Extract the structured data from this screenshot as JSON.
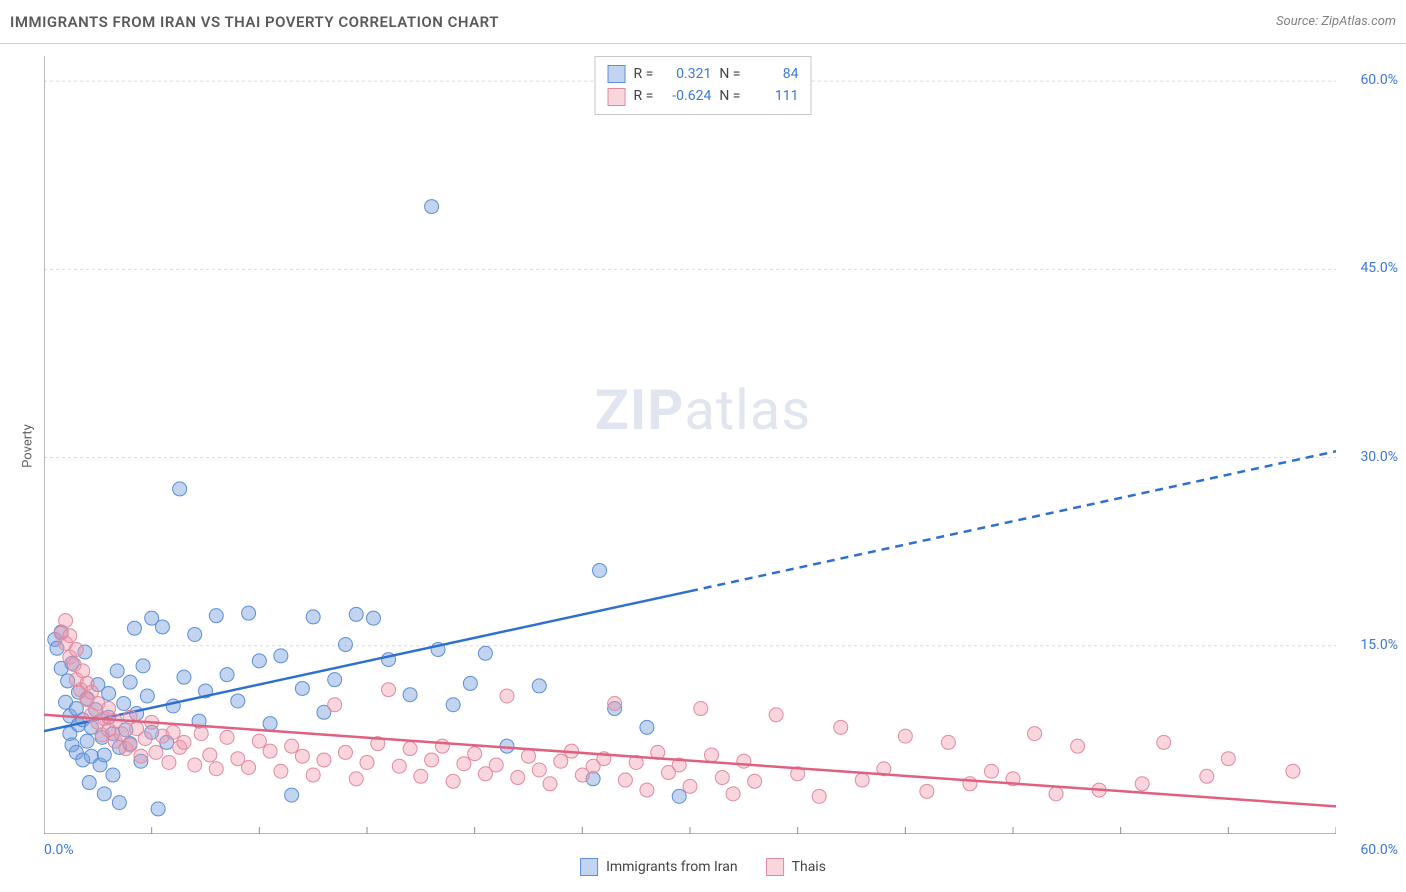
{
  "header": {
    "title": "IMMIGRANTS FROM IRAN VS THAI POVERTY CORRELATION CHART",
    "source": "Source: ZipAtlas.com"
  },
  "ylabel": "Poverty",
  "watermark": {
    "zip": "ZIP",
    "atlas": "atlas"
  },
  "chart": {
    "type": "scatter",
    "xlim": [
      0,
      60
    ],
    "ylim": [
      0,
      62
    ],
    "x_ticks": [
      0,
      5,
      10,
      15,
      20,
      25,
      30,
      35,
      40,
      45,
      50,
      55,
      60
    ],
    "y_grid": [
      15,
      30,
      45,
      60
    ],
    "y_tick_labels": [
      "15.0%",
      "30.0%",
      "45.0%",
      "60.0%"
    ],
    "x_corner_left": "0.0%",
    "x_corner_right": "60.0%",
    "background_color": "#ffffff",
    "grid_color": "#dcdcdc",
    "axis_color": "#909090",
    "tick_label_color": "#3b78d8",
    "series": [
      {
        "name": "Immigrants from Iran",
        "marker_fill": "rgba(120,160,220,0.45)",
        "marker_stroke": "#5b8fd6",
        "marker_radius": 7,
        "trend_color": "#2f6fd0",
        "trend_width": 2.5,
        "trend_solid_xmax": 30,
        "trend": {
          "x1": 0,
          "y1": 8.2,
          "x2": 60,
          "y2": 30.5
        },
        "R": "0.321",
        "N": "84",
        "points": [
          [
            0.5,
            15.5
          ],
          [
            0.6,
            14.8
          ],
          [
            0.8,
            13.2
          ],
          [
            0.8,
            16.1
          ],
          [
            1.0,
            10.5
          ],
          [
            1.1,
            12.2
          ],
          [
            1.2,
            8.0
          ],
          [
            1.2,
            9.4
          ],
          [
            1.3,
            7.1
          ],
          [
            1.3,
            13.6
          ],
          [
            1.5,
            10.0
          ],
          [
            1.5,
            6.5
          ],
          [
            1.6,
            8.7
          ],
          [
            1.6,
            11.3
          ],
          [
            1.8,
            9.1
          ],
          [
            1.8,
            5.9
          ],
          [
            1.9,
            14.5
          ],
          [
            2.0,
            7.4
          ],
          [
            2.0,
            10.8
          ],
          [
            2.1,
            4.1
          ],
          [
            2.2,
            6.2
          ],
          [
            2.2,
            8.5
          ],
          [
            2.4,
            9.9
          ],
          [
            2.5,
            11.9
          ],
          [
            2.6,
            5.5
          ],
          [
            2.7,
            7.7
          ],
          [
            2.8,
            6.3
          ],
          [
            2.8,
            3.2
          ],
          [
            3.0,
            9.3
          ],
          [
            3.0,
            11.2
          ],
          [
            3.2,
            8.0
          ],
          [
            3.2,
            4.7
          ],
          [
            3.4,
            13.0
          ],
          [
            3.5,
            6.9
          ],
          [
            3.5,
            2.5
          ],
          [
            3.7,
            10.4
          ],
          [
            3.8,
            8.3
          ],
          [
            4.0,
            12.1
          ],
          [
            4.0,
            7.2
          ],
          [
            4.2,
            16.4
          ],
          [
            4.3,
            9.6
          ],
          [
            4.5,
            5.8
          ],
          [
            4.6,
            13.4
          ],
          [
            4.8,
            11.0
          ],
          [
            5.0,
            8.1
          ],
          [
            5.0,
            17.2
          ],
          [
            5.3,
            2.0
          ],
          [
            5.5,
            16.5
          ],
          [
            5.7,
            7.3
          ],
          [
            6.0,
            10.2
          ],
          [
            6.3,
            27.5
          ],
          [
            6.5,
            12.5
          ],
          [
            7.0,
            15.9
          ],
          [
            7.2,
            9.0
          ],
          [
            7.5,
            11.4
          ],
          [
            8.0,
            17.4
          ],
          [
            8.5,
            12.7
          ],
          [
            9.0,
            10.6
          ],
          [
            9.5,
            17.6
          ],
          [
            10.0,
            13.8
          ],
          [
            10.5,
            8.8
          ],
          [
            11.0,
            14.2
          ],
          [
            11.5,
            3.1
          ],
          [
            12.0,
            11.6
          ],
          [
            12.5,
            17.3
          ],
          [
            13.0,
            9.7
          ],
          [
            13.5,
            12.3
          ],
          [
            14.0,
            15.1
          ],
          [
            14.5,
            17.5
          ],
          [
            15.3,
            17.2
          ],
          [
            16.0,
            13.9
          ],
          [
            17.0,
            11.1
          ],
          [
            18.0,
            50.0
          ],
          [
            18.3,
            14.7
          ],
          [
            19.0,
            10.3
          ],
          [
            19.8,
            12.0
          ],
          [
            20.5,
            14.4
          ],
          [
            21.5,
            7.0
          ],
          [
            23.0,
            11.8
          ],
          [
            25.5,
            4.4
          ],
          [
            25.8,
            21.0
          ],
          [
            26.5,
            10.0
          ],
          [
            28.0,
            8.5
          ],
          [
            29.5,
            3.0
          ]
        ]
      },
      {
        "name": "Thais",
        "marker_fill": "rgba(240,150,170,0.40)",
        "marker_stroke": "#e08aa0",
        "marker_radius": 7,
        "trend_color": "#e06080",
        "trend_width": 2.5,
        "trend_solid_xmax": 60,
        "trend": {
          "x1": 0,
          "y1": 9.5,
          "x2": 60,
          "y2": 2.2
        },
        "R": "-0.624",
        "N": "111",
        "points": [
          [
            0.8,
            16.0
          ],
          [
            1.0,
            15.2
          ],
          [
            1.0,
            17.0
          ],
          [
            1.2,
            14.1
          ],
          [
            1.2,
            15.8
          ],
          [
            1.4,
            13.5
          ],
          [
            1.5,
            12.3
          ],
          [
            1.5,
            14.7
          ],
          [
            1.7,
            11.5
          ],
          [
            1.8,
            13.0
          ],
          [
            2.0,
            10.7
          ],
          [
            2.0,
            12.0
          ],
          [
            2.2,
            9.5
          ],
          [
            2.2,
            11.3
          ],
          [
            2.5,
            8.9
          ],
          [
            2.5,
            10.4
          ],
          [
            2.7,
            7.9
          ],
          [
            2.8,
            9.2
          ],
          [
            3.0,
            8.3
          ],
          [
            3.0,
            10.0
          ],
          [
            3.3,
            7.4
          ],
          [
            3.3,
            9.0
          ],
          [
            3.6,
            8.0
          ],
          [
            3.8,
            6.8
          ],
          [
            4.0,
            9.3
          ],
          [
            4.0,
            7.1
          ],
          [
            4.3,
            8.4
          ],
          [
            4.5,
            6.2
          ],
          [
            4.7,
            7.6
          ],
          [
            5.0,
            8.9
          ],
          [
            5.2,
            6.5
          ],
          [
            5.5,
            7.8
          ],
          [
            5.8,
            5.7
          ],
          [
            6.0,
            8.1
          ],
          [
            6.3,
            6.9
          ],
          [
            6.5,
            7.3
          ],
          [
            7.0,
            5.5
          ],
          [
            7.3,
            8.0
          ],
          [
            7.7,
            6.3
          ],
          [
            8.0,
            5.2
          ],
          [
            8.5,
            7.7
          ],
          [
            9.0,
            6.0
          ],
          [
            9.5,
            5.3
          ],
          [
            10.0,
            7.4
          ],
          [
            10.5,
            6.6
          ],
          [
            11.0,
            5.0
          ],
          [
            11.5,
            7.0
          ],
          [
            12.0,
            6.2
          ],
          [
            12.5,
            4.7
          ],
          [
            13.0,
            5.9
          ],
          [
            13.5,
            10.3
          ],
          [
            14.0,
            6.5
          ],
          [
            14.5,
            4.4
          ],
          [
            15.0,
            5.7
          ],
          [
            15.5,
            7.2
          ],
          [
            16.0,
            11.5
          ],
          [
            16.5,
            5.4
          ],
          [
            17.0,
            6.8
          ],
          [
            17.5,
            4.6
          ],
          [
            18.0,
            5.9
          ],
          [
            18.5,
            7.0
          ],
          [
            19.0,
            4.2
          ],
          [
            19.5,
            5.6
          ],
          [
            20.0,
            6.4
          ],
          [
            20.5,
            4.8
          ],
          [
            21.0,
            5.5
          ],
          [
            21.5,
            11.0
          ],
          [
            22.0,
            4.5
          ],
          [
            22.5,
            6.2
          ],
          [
            23.0,
            5.1
          ],
          [
            23.5,
            4.0
          ],
          [
            24.0,
            5.8
          ],
          [
            24.5,
            6.6
          ],
          [
            25.0,
            4.7
          ],
          [
            25.5,
            5.4
          ],
          [
            26.0,
            6.0
          ],
          [
            26.5,
            10.4
          ],
          [
            27.0,
            4.3
          ],
          [
            27.5,
            5.7
          ],
          [
            28.0,
            3.5
          ],
          [
            28.5,
            6.5
          ],
          [
            29.0,
            4.9
          ],
          [
            29.5,
            5.5
          ],
          [
            30.0,
            3.8
          ],
          [
            30.5,
            10.0
          ],
          [
            31.0,
            6.3
          ],
          [
            31.5,
            4.5
          ],
          [
            32.0,
            3.2
          ],
          [
            32.5,
            5.8
          ],
          [
            33.0,
            4.2
          ],
          [
            34.0,
            9.5
          ],
          [
            35.0,
            4.8
          ],
          [
            36.0,
            3.0
          ],
          [
            37.0,
            8.5
          ],
          [
            38.0,
            4.3
          ],
          [
            39.0,
            5.2
          ],
          [
            40.0,
            7.8
          ],
          [
            41.0,
            3.4
          ],
          [
            42.0,
            7.3
          ],
          [
            43.0,
            4.0
          ],
          [
            44.0,
            5.0
          ],
          [
            45.0,
            4.4
          ],
          [
            46.0,
            8.0
          ],
          [
            47.0,
            3.2
          ],
          [
            48.0,
            7.0
          ],
          [
            49.0,
            3.5
          ],
          [
            51.0,
            4.0
          ],
          [
            52.0,
            7.3
          ],
          [
            54.0,
            4.6
          ],
          [
            55.0,
            6.0
          ],
          [
            58.0,
            5.0
          ]
        ]
      }
    ]
  },
  "legend_top": {
    "r_label": "R =",
    "n_label": "N ="
  },
  "legend_bottom": {
    "items": [
      "Immigrants from Iran",
      "Thais"
    ]
  }
}
